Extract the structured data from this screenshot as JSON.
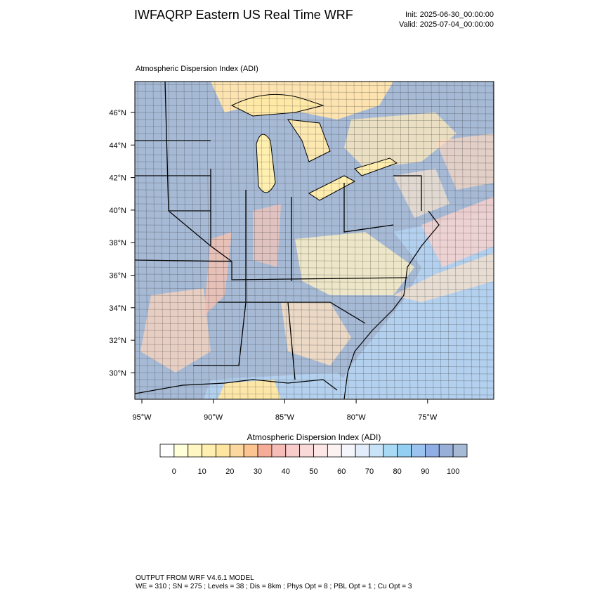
{
  "header": {
    "title": "IWFAQRP Eastern US Real Time WRF",
    "init": "Init: 2025-06-30_00:00:00",
    "valid": "Valid: 2025-07-04_00:00:00"
  },
  "map": {
    "title": "Atmospheric Dispersion Index   (ADI)",
    "lat_labels": [
      "46°N",
      "44°N",
      "42°N",
      "40°N",
      "38°N",
      "36°N",
      "34°N",
      "32°N",
      "30°N"
    ],
    "lon_labels": [
      "95°W",
      "90°W",
      "85°W",
      "80°W",
      "75°W"
    ]
  },
  "colorbar": {
    "title": "Atmospheric Dispersion Index  (ADI)",
    "colors": [
      "#ffffff",
      "#ffffd9",
      "#fff6c2",
      "#ffefb0",
      "#ffe6a0",
      "#fdd7a0",
      "#fcc490",
      "#f6ad98",
      "#f6bcb8",
      "#f8cccb",
      "#fad9d9",
      "#fce6e6",
      "#fdf2f2",
      "#f4f6fc",
      "#e2ecfa",
      "#c8e2f7",
      "#a8daf5",
      "#92cff3",
      "#9cc2ef",
      "#90aee6",
      "#98b0d8",
      "#a6bad6"
    ],
    "ticks": [
      "0",
      "10",
      "20",
      "30",
      "40",
      "50",
      "60",
      "70",
      "80",
      "90",
      "100"
    ]
  },
  "footer": {
    "line1": "OUTPUT FROM WRF V4.6.1 MODEL",
    "line2": "WE = 310 ; SN = 275 ; Levels = 38 ; Dis = 8km ; Phys Opt = 8 ; PBL Opt = 1 ; Cu Opt = 3"
  }
}
